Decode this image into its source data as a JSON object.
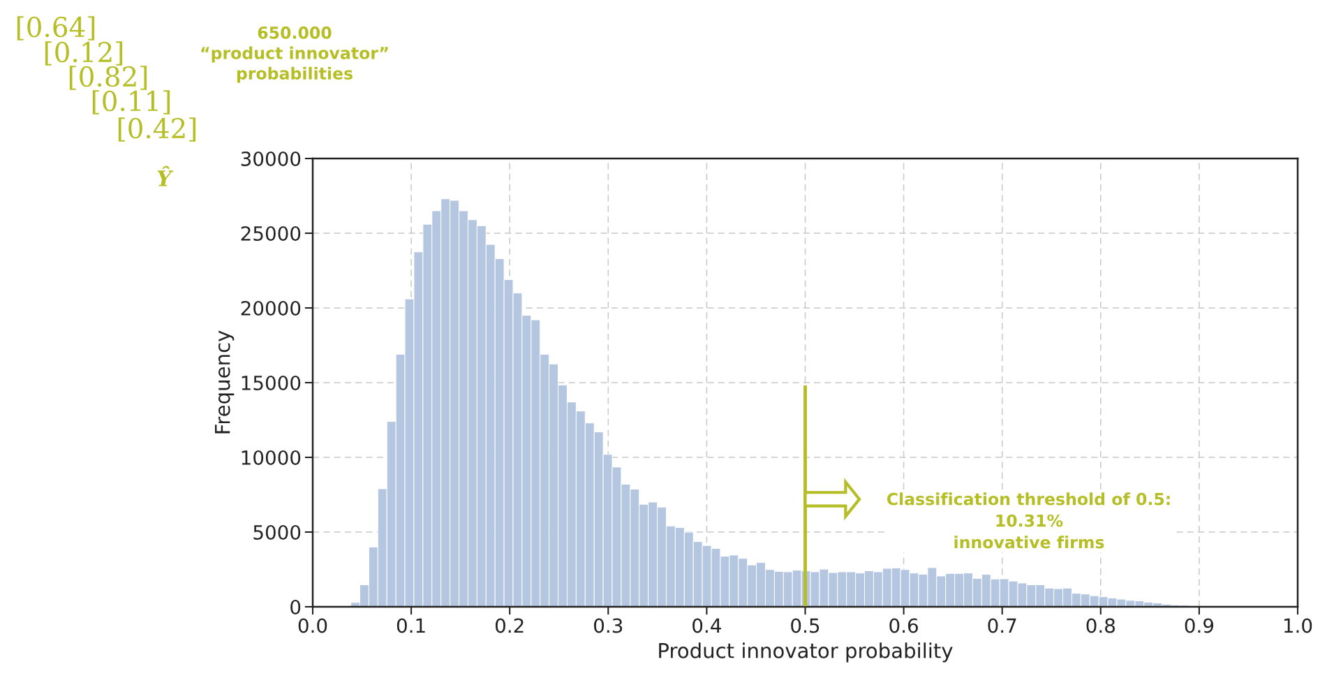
{
  "chart_data": {
    "type": "histogram",
    "xlabel": "Product innovator probability",
    "ylabel": "Frequency",
    "bins": [
      0.0387,
      0.04785,
      0.057,
      0.06615,
      0.0753,
      0.08445,
      0.0936,
      0.10275,
      0.1119,
      0.12105,
      0.1302,
      0.13935,
      0.1485,
      0.15765,
      0.1668,
      0.17595,
      0.1851,
      0.19425,
      0.2034,
      0.21255,
      0.2217,
      0.23085,
      0.24,
      0.24915,
      0.2583,
      0.26745,
      0.2766,
      0.28575,
      0.2949,
      0.30405,
      0.3132,
      0.32235,
      0.3315,
      0.34065,
      0.3498,
      0.35895,
      0.3681,
      0.37725,
      0.3864,
      0.39555,
      0.4047,
      0.41385,
      0.423,
      0.43215,
      0.4413,
      0.45045,
      0.4596,
      0.46875,
      0.4779,
      0.48705,
      0.4962,
      0.50535,
      0.5145,
      0.52365,
      0.5328,
      0.54195,
      0.5511,
      0.56025,
      0.5694,
      0.57855,
      0.5877,
      0.59685,
      0.606,
      0.61515,
      0.6243,
      0.63345,
      0.6426,
      0.65175,
      0.6609,
      0.67005,
      0.6792,
      0.68835,
      0.6975,
      0.70665,
      0.7158,
      0.72495,
      0.7341,
      0.74325,
      0.7524,
      0.76155,
      0.7707,
      0.77985,
      0.789,
      0.79815,
      0.8073,
      0.81645,
      0.8256,
      0.83475,
      0.8439,
      0.85305,
      0.8622,
      0.87135,
      0.8805,
      0.88965,
      0.8988
    ],
    "values": [
      290,
      1470,
      4000,
      7900,
      12400,
      16900,
      20600,
      23750,
      25600,
      26500,
      27300,
      27200,
      26500,
      25900,
      25500,
      24250,
      23300,
      21900,
      21000,
      19500,
      19200,
      16900,
      16250,
      14850,
      13700,
      13100,
      12300,
      11700,
      10200,
      9350,
      8200,
      7870,
      6860,
      7010,
      6670,
      5410,
      5300,
      4990,
      4360,
      4100,
      3900,
      3380,
      3460,
      3240,
      2800,
      2960,
      2490,
      2370,
      2340,
      2450,
      2400,
      2340,
      2520,
      2290,
      2340,
      2340,
      2260,
      2410,
      2340,
      2570,
      2600,
      2490,
      2260,
      2180,
      2620,
      2060,
      2230,
      2230,
      2260,
      1900,
      2170,
      1860,
      1870,
      1720,
      1590,
      1470,
      1470,
      1250,
      1210,
      1250,
      900,
      850,
      740,
      670,
      590,
      510,
      430,
      400,
      310,
      250,
      170,
      120,
      100,
      50
    ],
    "color": "#b4c6e0",
    "xlim": [
      0.0,
      1.0
    ],
    "xticks": [
      {
        "value": 0,
        "label": "0.0"
      },
      0.1,
      0.2,
      0.3,
      0.4,
      0.5,
      0.6,
      0.7,
      0.8,
      0.9,
      {
        "value": 1,
        "label": "1.0"
      }
    ],
    "ylim": [
      0,
      30000
    ],
    "yticks": [
      0,
      5000,
      10000,
      15000,
      20000,
      25000,
      30000
    ],
    "grid": true,
    "ref_lines": [
      {
        "axis": "x",
        "value": 0.5,
        "label": "Classification threshold of 0.5:\n10.31%\ninnovative firms",
        "color": "#b5be24"
      }
    ],
    "annotations": [
      "650.000\n“product innovator”\nprobabilities",
      "[0.64]",
      "[0.12]",
      "[0.82]",
      "[0.11]",
      "[0.42]",
      "Ŷ"
    ]
  }
}
